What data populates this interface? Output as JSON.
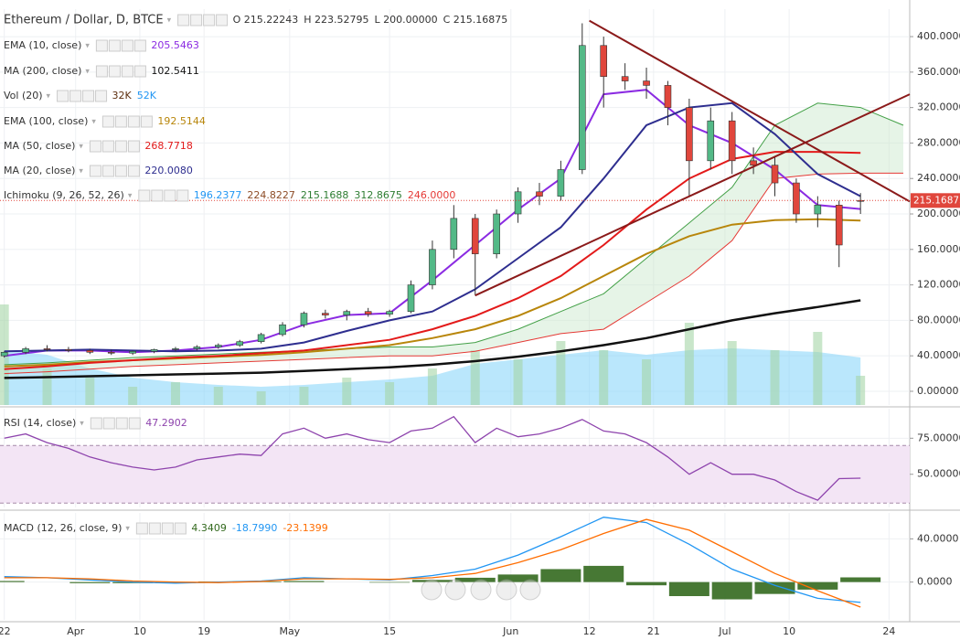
{
  "chart_data": [
    {
      "type": "candlestick",
      "title": "Ethereum / Dollar, D, BTCE",
      "header": [
        "O 215.22243",
        "H 223.52795",
        "L 200.00000",
        "C 215.16875"
      ],
      "up_color": "#53b987",
      "down_color": "#e0463c",
      "x": [
        0,
        3,
        6,
        9,
        12,
        15,
        18,
        21,
        24,
        27,
        30,
        33,
        36,
        39,
        42,
        45,
        48,
        51,
        54,
        57,
        60,
        63,
        66,
        69,
        72,
        75,
        78,
        81,
        84,
        87,
        90,
        93,
        96,
        99,
        102,
        105,
        108,
        111,
        114,
        117,
        120
      ],
      "open": [
        40,
        44,
        48,
        47,
        46,
        44,
        43,
        45,
        47,
        48,
        50,
        52,
        56,
        64,
        75,
        88,
        86,
        90,
        87,
        90,
        120,
        160,
        195,
        155,
        200,
        225,
        220,
        250,
        390,
        355,
        350,
        345,
        320,
        260,
        305,
        260,
        255,
        235,
        200,
        210,
        215.22243
      ],
      "high": [
        45,
        50,
        52,
        50,
        48,
        47,
        46,
        48,
        50,
        52,
        54,
        58,
        66,
        78,
        90,
        92,
        92,
        94,
        92,
        125,
        170,
        210,
        200,
        205,
        230,
        235,
        260,
        415,
        400,
        370,
        365,
        350,
        330,
        320,
        315,
        275,
        265,
        240,
        220,
        215,
        223.52795
      ],
      "low": [
        38,
        42,
        45,
        44,
        42,
        41,
        41,
        43,
        45,
        46,
        48,
        50,
        54,
        62,
        72,
        82,
        80,
        84,
        84,
        88,
        115,
        150,
        108,
        150,
        190,
        210,
        215,
        245,
        320,
        340,
        330,
        300,
        220,
        250,
        245,
        245,
        220,
        190,
        185,
        140,
        200
      ],
      "close": [
        44,
        48,
        47,
        46,
        44,
        43,
        45,
        47,
        48,
        50,
        52,
        56,
        64,
        75,
        88,
        86,
        90,
        87,
        90,
        120,
        160,
        195,
        155,
        200,
        225,
        220,
        250,
        390,
        355,
        350,
        345,
        320,
        260,
        305,
        260,
        255,
        235,
        200,
        210,
        165,
        215.16875
      ],
      "last_price": {
        "value": 215.16875,
        "label": "215.16875"
      },
      "xlim": [
        -0.6,
        126.9
      ],
      "xticks": [
        {
          "value": 0,
          "label": "22"
        },
        {
          "value": 10,
          "label": "Apr"
        },
        {
          "value": 19,
          "label": "10"
        },
        {
          "value": 28,
          "label": "19"
        },
        {
          "value": 40,
          "label": "May"
        },
        {
          "value": 54,
          "label": "15"
        },
        {
          "value": 71,
          "label": "Jun"
        },
        {
          "value": 82,
          "label": "12"
        },
        {
          "value": 91,
          "label": "21"
        },
        {
          "value": 101,
          "label": "Jul"
        },
        {
          "value": 110,
          "label": "10"
        },
        {
          "value": 124,
          "label": "24"
        }
      ],
      "ylim": [
        -15.5,
        431
      ],
      "yticks": [
        {
          "value": 0,
          "label": "0.00000"
        },
        {
          "value": 40,
          "label": "40.00000"
        },
        {
          "value": 80,
          "label": "80.00000"
        },
        {
          "value": 120,
          "label": "120.00000"
        },
        {
          "value": 160,
          "label": "160.00000"
        },
        {
          "value": 200,
          "label": "200.00000"
        },
        {
          "value": 240,
          "label": "240.00000"
        },
        {
          "value": 280,
          "label": "280.00000"
        },
        {
          "value": 320,
          "label": "320.00000"
        },
        {
          "value": 360,
          "label": "360.00000"
        },
        {
          "value": 400,
          "label": "400.00000"
        }
      ],
      "line_x": [
        0,
        6,
        12,
        18,
        24,
        30,
        36,
        42,
        48,
        54,
        60,
        66,
        72,
        78,
        84,
        90,
        96,
        102,
        108,
        114,
        120
      ],
      "indicators": [
        {
          "name": "EMA (10, close)",
          "color": "#8b2be2",
          "legend_value": "205.5463",
          "values": [
            40,
            46,
            46,
            44,
            46,
            50,
            58,
            75,
            86,
            88,
            125,
            165,
            205,
            240,
            335,
            340,
            300,
            280,
            250,
            210,
            205.5463
          ]
        },
        {
          "name": "MA (200, close)",
          "color": "#111111",
          "legend_value": "102.5411",
          "values": [
            15,
            16,
            17,
            18,
            19,
            20,
            21,
            23,
            25,
            27,
            30,
            34,
            39,
            45,
            52,
            60,
            70,
            80,
            88,
            95,
            102.5411
          ]
        },
        {
          "name": "EMA (100, close)",
          "color": "#b8860b",
          "legend_value": "192.5144",
          "values": [
            28,
            30,
            33,
            35,
            37,
            39,
            41,
            44,
            48,
            52,
            60,
            70,
            85,
            105,
            130,
            155,
            175,
            188,
            193,
            194,
            192.5144
          ]
        },
        {
          "name": "MA (50, close)",
          "color": "#e31a1a",
          "legend_value": "268.7718",
          "values": [
            25,
            28,
            32,
            35,
            38,
            40,
            43,
            46,
            52,
            58,
            70,
            85,
            105,
            130,
            165,
            205,
            240,
            262,
            270,
            270,
            268.7718
          ]
        },
        {
          "name": "MA (20, close)",
          "color": "#2e2e8f",
          "legend_value": "220.0080",
          "values": [
            45,
            46,
            47,
            46,
            45,
            46,
            48,
            55,
            68,
            80,
            90,
            115,
            150,
            185,
            240,
            300,
            320,
            325,
            290,
            245,
            220.008
          ]
        }
      ],
      "volume": {
        "name": "Vol (20)",
        "legend_values": [
          "32K",
          "52K"
        ],
        "color": "#a5d6a7",
        "ma_color": "#81d4fa",
        "vlim": [
          0,
          150000
        ],
        "values": [
          110000,
          40000,
          30000,
          20000,
          25000,
          20000,
          15000,
          20000,
          30000,
          25000,
          40000,
          60000,
          50000,
          70000,
          60000,
          50000,
          90000,
          70000,
          60000,
          80000,
          32000
        ],
        "ma_values": [
          60000,
          55000,
          40000,
          30000,
          25000,
          22000,
          20000,
          22000,
          25000,
          28000,
          32000,
          45000,
          50000,
          55000,
          60000,
          55000,
          60000,
          62000,
          60000,
          58000,
          52000
        ]
      },
      "ichimoku": {
        "name": "Ichimoku (9, 26, 52, 26)",
        "legend_values": [
          "196.2377",
          "224.8227",
          "215.1688",
          "312.8675",
          "246.0000"
        ],
        "legend_colors": [
          "#2196f3",
          "#8d4b25",
          "#2e7d32",
          "#2e7d32",
          "#e53935"
        ],
        "x": [
          0,
          6,
          12,
          18,
          24,
          30,
          36,
          42,
          48,
          54,
          60,
          66,
          72,
          78,
          84,
          90,
          96,
          102,
          108,
          114,
          120,
          126
        ],
        "span_a": [
          30,
          32,
          35,
          38,
          40,
          42,
          44,
          46,
          48,
          50,
          50,
          55,
          70,
          90,
          110,
          150,
          190,
          230,
          300,
          325,
          320,
          300
        ],
        "span_b": [
          20,
          22,
          25,
          28,
          30,
          32,
          34,
          36,
          38,
          40,
          40,
          45,
          55,
          65,
          70,
          100,
          130,
          170,
          240,
          245,
          246,
          246
        ],
        "color_a": "#43a047",
        "color_b": "#e53935"
      },
      "trendlines": [
        {
          "x": [
            82,
            126.9
          ],
          "values": [
            418,
            214
          ]
        },
        {
          "x": [
            66,
            126.9
          ],
          "values": [
            108,
            335
          ]
        }
      ],
      "trend_color": "#8b1a1a"
    },
    {
      "type": "line",
      "name": "RSI (14, close)",
      "legend_value": "47.2902",
      "color": "#8e44ad",
      "x": [
        0,
        3,
        6,
        9,
        12,
        15,
        18,
        21,
        24,
        27,
        30,
        33,
        36,
        39,
        42,
        45,
        48,
        51,
        54,
        57,
        60,
        63,
        66,
        69,
        72,
        75,
        78,
        81,
        84,
        87,
        90,
        93,
        96,
        99,
        102,
        105,
        108,
        111,
        114,
        117,
        120
      ],
      "values": [
        75,
        78,
        72,
        68,
        62,
        58,
        55,
        53,
        55,
        60,
        62,
        64,
        63,
        78,
        82,
        75,
        78,
        74,
        72,
        80,
        82,
        90,
        72,
        82,
        76,
        78,
        82,
        88,
        80,
        78,
        72,
        62,
        50,
        58,
        50,
        50,
        46,
        38,
        32,
        47,
        47.2902
      ],
      "band": [
        30,
        70
      ],
      "ylim": [
        27,
        95.5
      ],
      "yticks": [
        {
          "value": 50,
          "label": "50.00000"
        },
        {
          "value": 75,
          "label": "75.00000"
        }
      ]
    },
    {
      "type": "line",
      "name": "MACD (12, 26, close, 9)",
      "x": [
        0,
        6,
        12,
        18,
        24,
        30,
        36,
        42,
        48,
        54,
        60,
        66,
        72,
        78,
        84,
        90,
        96,
        102,
        108,
        114,
        120
      ],
      "series": [
        {
          "name": "Histogram",
          "legend_value": "4.3409",
          "color": "#33691e",
          "values": [
            1,
            0,
            -1,
            -1,
            -1,
            0.5,
            0.5,
            1,
            0,
            -0.5,
            2,
            4,
            7,
            12,
            15,
            -3,
            -13,
            -16,
            -11,
            -7,
            4.3409
          ]
        },
        {
          "name": "MACD",
          "legend_value": "-18.7990",
          "color": "#2196f3",
          "values": [
            5,
            4,
            2,
            0,
            -1,
            0,
            1,
            4,
            3,
            2,
            6,
            12,
            25,
            42,
            60,
            55,
            35,
            12,
            -3,
            -15,
            -18.799
          ]
        },
        {
          "name": "Signal",
          "legend_value": "-23.1399",
          "color": "#ff6d00",
          "values": [
            4,
            4,
            3,
            1,
            0,
            -0.5,
            0.5,
            3,
            3,
            2.5,
            4,
            8,
            18,
            30,
            45,
            58,
            48,
            28,
            8,
            -8,
            -23.1399
          ]
        }
      ],
      "ylim": [
        -35,
        64
      ],
      "yticks": [
        {
          "value": 0,
          "label": "0.0000"
        },
        {
          "value": 40,
          "label": "40.0000"
        }
      ]
    }
  ]
}
